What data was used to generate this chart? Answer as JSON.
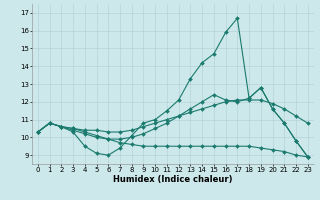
{
  "xlabel": "Humidex (Indice chaleur)",
  "ylabel": "",
  "bg_color": "#cde8ea",
  "line_color": "#1a7a6e",
  "xlim": [
    -0.5,
    23.5
  ],
  "ylim": [
    8.5,
    17.5
  ],
  "xticks": [
    0,
    1,
    2,
    3,
    4,
    5,
    6,
    7,
    8,
    9,
    10,
    11,
    12,
    13,
    14,
    15,
    16,
    17,
    18,
    19,
    20,
    21,
    22,
    23
  ],
  "yticks": [
    9,
    10,
    11,
    12,
    13,
    14,
    15,
    16,
    17
  ],
  "series": [
    {
      "x": [
        0,
        1,
        2,
        3,
        4,
        5,
        6,
        7,
        8,
        9,
        10,
        11,
        12,
        13,
        14,
        15,
        16,
        17,
        18,
        19,
        20,
        21,
        22,
        23
      ],
      "y": [
        10.3,
        10.8,
        10.6,
        10.3,
        9.5,
        9.1,
        9.0,
        9.4,
        10.1,
        10.8,
        11.0,
        11.5,
        12.1,
        13.3,
        14.2,
        14.7,
        15.9,
        16.7,
        12.2,
        12.8,
        11.6,
        10.8,
        9.8,
        8.9
      ]
    },
    {
      "x": [
        0,
        1,
        2,
        3,
        4,
        5,
        6,
        7,
        8,
        9,
        10,
        11,
        12,
        13,
        14,
        15,
        16,
        17,
        18,
        19,
        20,
        21,
        22,
        23
      ],
      "y": [
        10.3,
        10.8,
        10.6,
        10.5,
        10.4,
        10.4,
        10.3,
        10.3,
        10.4,
        10.6,
        10.8,
        11.0,
        11.2,
        11.4,
        11.6,
        11.8,
        12.0,
        12.1,
        12.1,
        12.1,
        11.9,
        11.6,
        11.2,
        10.8
      ]
    },
    {
      "x": [
        0,
        1,
        2,
        3,
        4,
        5,
        6,
        7,
        8,
        9,
        10,
        11,
        12,
        13,
        14,
        15,
        16,
        17,
        18,
        19,
        20,
        21,
        22,
        23
      ],
      "y": [
        10.3,
        10.8,
        10.6,
        10.5,
        10.3,
        10.1,
        9.9,
        9.7,
        9.6,
        9.5,
        9.5,
        9.5,
        9.5,
        9.5,
        9.5,
        9.5,
        9.5,
        9.5,
        9.5,
        9.4,
        9.3,
        9.2,
        9.0,
        8.9
      ]
    },
    {
      "x": [
        0,
        1,
        2,
        3,
        4,
        5,
        6,
        7,
        8,
        9,
        10,
        11,
        12,
        13,
        14,
        15,
        16,
        17,
        18,
        19,
        20,
        21,
        22,
        23
      ],
      "y": [
        10.3,
        10.8,
        10.6,
        10.4,
        10.2,
        10.0,
        9.9,
        9.9,
        10.0,
        10.2,
        10.5,
        10.8,
        11.2,
        11.6,
        12.0,
        12.4,
        12.1,
        12.0,
        12.2,
        12.8,
        11.6,
        10.8,
        9.8,
        8.9
      ]
    }
  ],
  "tick_fontsize": 5.0,
  "xlabel_fontsize": 6.0,
  "grid_color": "#b0d0d4",
  "marker_size": 2.0,
  "linewidth": 0.8
}
